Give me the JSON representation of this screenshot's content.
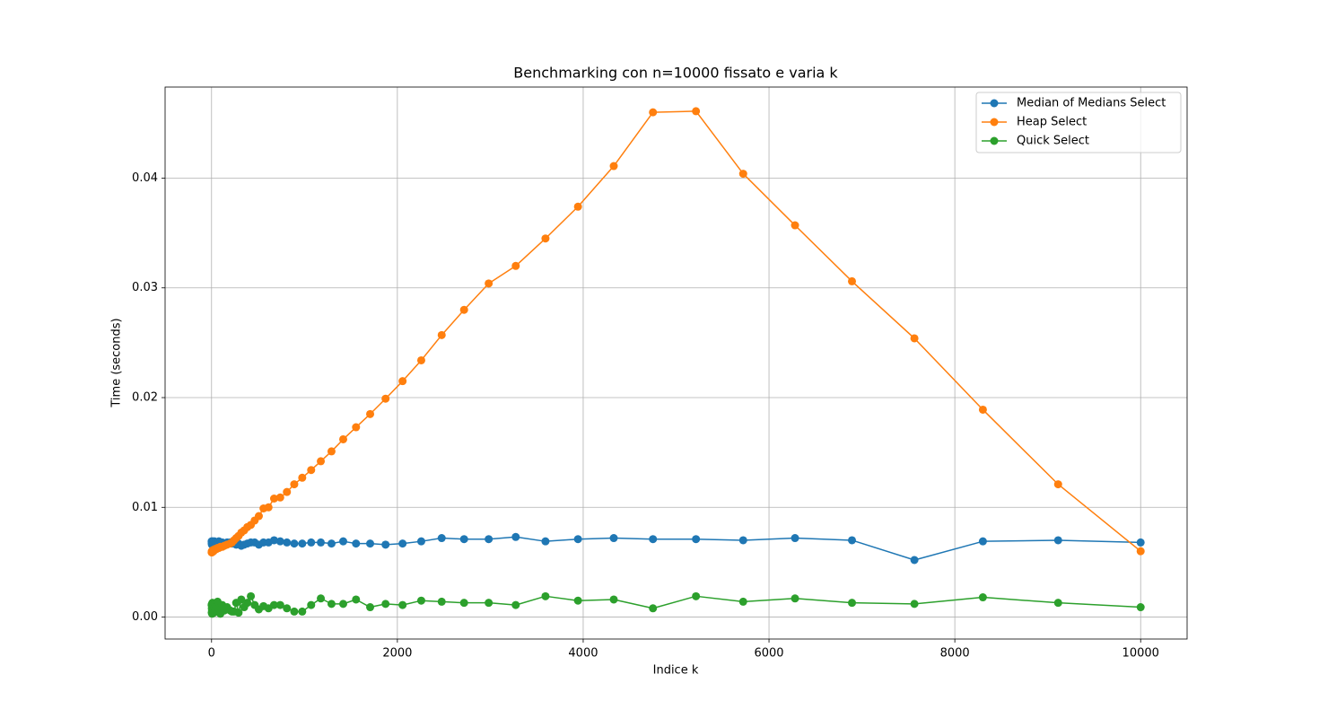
{
  "chart_data": {
    "type": "line",
    "title": "Benchmarking con n=10000 fissato e varia k",
    "xlabel": "Indice k",
    "ylabel": "Time (seconds)",
    "x": [
      1,
      2,
      3,
      4,
      5,
      6,
      8,
      10,
      12,
      14,
      17,
      21,
      25,
      31,
      37,
      45,
      54,
      65,
      79,
      95,
      115,
      138,
      167,
      201,
      220,
      242,
      265,
      291,
      320,
      351,
      385,
      423,
      464,
      509,
      559,
      613,
      673,
      739,
      811,
      890,
      976,
      1072,
      1176,
      1291,
      1417,
      1555,
      1707,
      1873,
      2056,
      2257,
      2477,
      2718,
      2983,
      3274,
      3594,
      3944,
      4329,
      4751,
      5214,
      5722,
      6280,
      6893,
      7565,
      8302,
      9112,
      10000
    ],
    "series": [
      {
        "name": "Median of Medians Select",
        "color": "#1f77b4",
        "values": [
          0.0069,
          0.0067,
          0.0068,
          0.0066,
          0.0067,
          0.0068,
          0.0067,
          0.0068,
          0.0069,
          0.0067,
          0.0068,
          0.0067,
          0.0068,
          0.0069,
          0.0067,
          0.0068,
          0.0067,
          0.0068,
          0.0069,
          0.0068,
          0.0068,
          0.0067,
          0.0068,
          0.0068,
          0.0067,
          0.0068,
          0.0066,
          0.0067,
          0.0065,
          0.0066,
          0.0067,
          0.0068,
          0.0068,
          0.0066,
          0.0068,
          0.0068,
          0.007,
          0.0069,
          0.0068,
          0.0067,
          0.0067,
          0.0068,
          0.0068,
          0.0067,
          0.0069,
          0.0067,
          0.0067,
          0.0066,
          0.0067,
          0.0069,
          0.0072,
          0.0071,
          0.0071,
          0.0073,
          0.0069,
          0.0071,
          0.0072,
          0.0071,
          0.0071,
          0.007,
          0.0072,
          0.007,
          0.0052,
          0.0069,
          0.007,
          0.0068
        ]
      },
      {
        "name": "Heap Select",
        "color": "#ff7f0e",
        "values": [
          0.0059,
          0.0059,
          0.006,
          0.0059,
          0.006,
          0.006,
          0.006,
          0.006,
          0.006,
          0.0061,
          0.0061,
          0.006,
          0.0061,
          0.0061,
          0.0062,
          0.0062,
          0.0062,
          0.0063,
          0.0063,
          0.0064,
          0.0064,
          0.0065,
          0.0066,
          0.0067,
          0.0068,
          0.007,
          0.0072,
          0.0074,
          0.0077,
          0.0079,
          0.0082,
          0.0084,
          0.0088,
          0.0092,
          0.0099,
          0.01,
          0.0108,
          0.0109,
          0.0114,
          0.0121,
          0.0127,
          0.0134,
          0.0142,
          0.0151,
          0.0162,
          0.0173,
          0.0185,
          0.0199,
          0.0215,
          0.0234,
          0.0257,
          0.028,
          0.0304,
          0.032,
          0.0345,
          0.0374,
          0.0411,
          0.046,
          0.0461,
          0.0404,
          0.0357,
          0.0306,
          0.0254,
          0.0189,
          0.0121,
          0.006
        ]
      },
      {
        "name": "Quick Select",
        "color": "#2ca02c",
        "values": [
          0.0011,
          0.0004,
          0.0008,
          0.0012,
          0.0006,
          0.0003,
          0.0009,
          0.0013,
          0.0005,
          0.001,
          0.0007,
          0.0011,
          0.0004,
          0.0009,
          0.0012,
          0.0006,
          0.001,
          0.0014,
          0.0008,
          0.0003,
          0.0011,
          0.0006,
          0.0009,
          0.0006,
          0.0005,
          0.0005,
          0.0013,
          0.0004,
          0.0016,
          0.0009,
          0.0013,
          0.0019,
          0.0011,
          0.0007,
          0.001,
          0.0008,
          0.0011,
          0.0011,
          0.0008,
          0.0005,
          0.0005,
          0.0011,
          0.0017,
          0.0012,
          0.0012,
          0.0016,
          0.0009,
          0.0012,
          0.0011,
          0.0015,
          0.0014,
          0.0013,
          0.0013,
          0.0011,
          0.0019,
          0.0015,
          0.0016,
          0.0008,
          0.0019,
          0.0014,
          0.0017,
          0.0013,
          0.0012,
          0.0018,
          0.0013,
          0.0009
        ]
      }
    ],
    "xlim": [
      -500,
      10500
    ],
    "ylim": [
      -0.002,
      0.0483
    ],
    "xticks": [
      0,
      2000,
      4000,
      6000,
      8000,
      10000
    ],
    "yticks": [
      {
        "value": 0,
        "label": "0.00"
      },
      {
        "value": 0.01,
        "label": "0.01"
      },
      {
        "value": 0.02,
        "label": "0.02"
      },
      {
        "value": 0.03,
        "label": "0.03"
      },
      {
        "value": 0.04,
        "label": "0.04"
      }
    ],
    "grid": true,
    "legend": "upper right"
  }
}
